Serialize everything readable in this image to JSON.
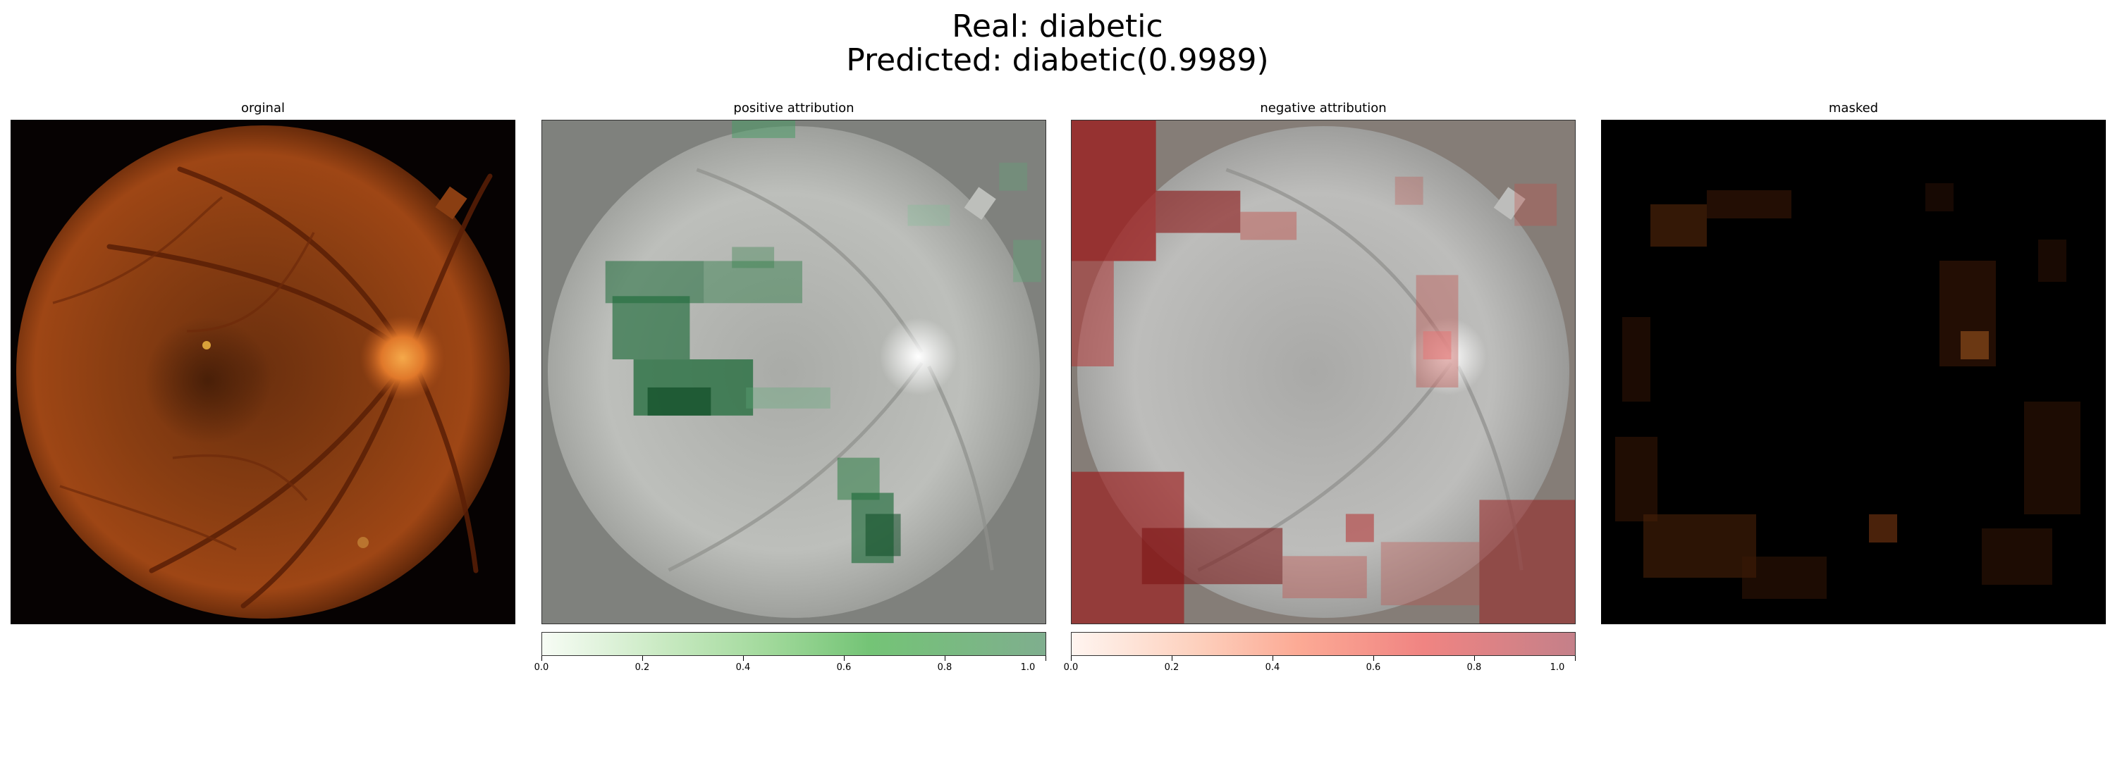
{
  "figure": {
    "title_line1": "Real: diabetic",
    "title_line2": "Predicted: diabetic(0.9989)"
  },
  "panels": [
    {
      "title": "orginal"
    },
    {
      "title": "positive attribution"
    },
    {
      "title": "negative attribution"
    },
    {
      "title": "masked"
    }
  ],
  "colorbars": {
    "positive": {
      "colormap": "Greens",
      "ticks": [
        "0.0",
        "0.2",
        "0.4",
        "0.6",
        "0.8",
        "1.0"
      ]
    },
    "negative": {
      "colormap": "Reds",
      "ticks": [
        "0.0",
        "0.2",
        "0.4",
        "0.6",
        "0.8",
        "1.0"
      ]
    }
  },
  "colors": {
    "retina_orange": "#b5541c",
    "green_attr": "#1f6b3a",
    "red_attr": "#9c1a1a"
  }
}
